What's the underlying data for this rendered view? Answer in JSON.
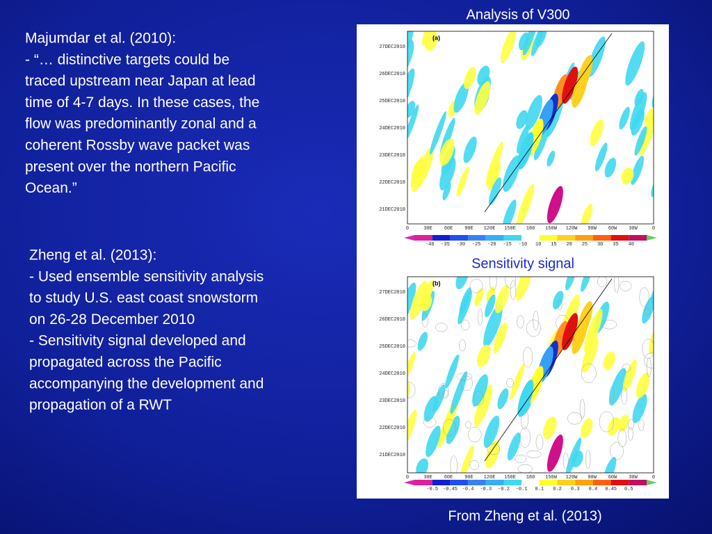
{
  "slide": {
    "left_text": {
      "block1": [
        "Majumdar et al. (2010):",
        "- “… distinctive targets could be",
        "traced upstream near Japan at lead",
        "time of 4-7 days. In these cases, the",
        "flow was predominantly zonal and a",
        "coherent Rossby wave packet was",
        "present over the northern Pacific",
        "Ocean.”"
      ],
      "block2": [
        "Zheng et al. (2013):",
        "- Used ensemble sensitivity analysis",
        "to study U.S. east coast snowstorm",
        "on 26-28 December 2010",
        "- Sensitivity signal developed and",
        "propagated across the Pacific",
        "accompanying the development and",
        "propagation of a RWT"
      ]
    },
    "figure": {
      "caption_top": "Analysis of V300",
      "caption_mid": "Sensitivity signal",
      "source": "From Zheng et al. (2013)",
      "panels": [
        {
          "label": "(a)",
          "dates": [
            "27DEC2010",
            "26DEC2010",
            "25DEC2010",
            "24DEC2010",
            "23DEC2010",
            "22DEC2010",
            "21DEC2010"
          ],
          "longitudes": [
            "0",
            "30E",
            "60E",
            "90E",
            "120E",
            "150E",
            "180",
            "150W",
            "120W",
            "90W",
            "60W",
            "30W",
            "0"
          ],
          "colorbar_labels": [
            "-40",
            "-35",
            "-30",
            "-25",
            "-20",
            "-15",
            "-10",
            "10",
            "15",
            "20",
            "25",
            "30",
            "35",
            "40"
          ]
        },
        {
          "label": "(b)",
          "dates": [
            "27DEC2010",
            "26DEC2010",
            "25DEC2010",
            "24DEC2010",
            "23DEC2010",
            "22DEC2010",
            "21DEC2010"
          ],
          "longitudes": [
            "0",
            "30E",
            "60E",
            "90E",
            "120E",
            "150E",
            "180",
            "150W",
            "120W",
            "90W",
            "60W",
            "30W",
            "0"
          ],
          "colorbar_labels": [
            "-0.5",
            "-0.45",
            "-0.4",
            "-0.3",
            "-0.2",
            "-0.1",
            "0.1",
            "0.2",
            "0.3",
            "0.4",
            "0.45",
            "0.5"
          ]
        }
      ]
    }
  }
}
